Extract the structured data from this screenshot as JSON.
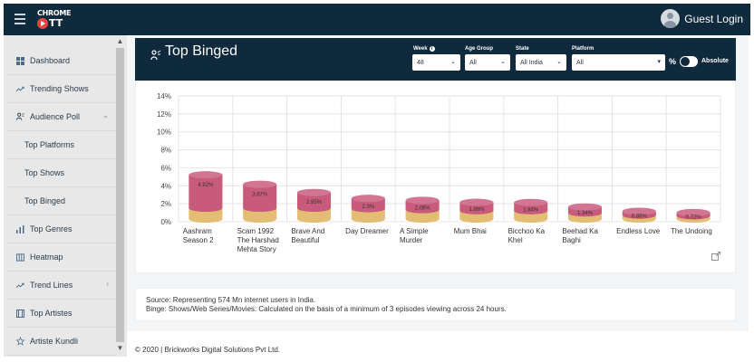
{
  "brand": {
    "logo_top": "CHROME",
    "logo_bottom": "TT"
  },
  "user": {
    "name": "Guest Login"
  },
  "sidebar": {
    "items": [
      {
        "label": "Dashboard",
        "icon": "grid-icon",
        "sub": false
      },
      {
        "label": "Trending Shows",
        "icon": "trend-icon",
        "sub": false
      },
      {
        "label": "Audience Poll",
        "icon": "audience-icon",
        "sub": false,
        "caret": "chevron-down"
      },
      {
        "label": "Top Platforms",
        "sub": true
      },
      {
        "label": "Top Shows",
        "sub": true
      },
      {
        "label": "Top Binged",
        "sub": true
      },
      {
        "label": "Top Genres",
        "icon": "bars-icon",
        "sub": false
      },
      {
        "label": "Heatmap",
        "icon": "heatmap-icon",
        "sub": false
      },
      {
        "label": "Trend Lines",
        "icon": "trend-icon",
        "sub": false,
        "caret": "chevron-left"
      },
      {
        "label": "Top Artistes",
        "icon": "film-icon",
        "sub": false
      },
      {
        "label": "Artiste Kundli",
        "icon": "star-icon",
        "sub": false
      }
    ]
  },
  "header": {
    "title": "Top Binged",
    "filters": {
      "week": {
        "label": "Week",
        "value": "48"
      },
      "age_group": {
        "label": "Age Group",
        "value": "All"
      },
      "state": {
        "label": "State",
        "value": "All India"
      },
      "platform": {
        "label": "Platform",
        "value": "All"
      }
    },
    "percent_label": "%",
    "absolute_label": "Absolute"
  },
  "chart_data": {
    "type": "bar",
    "categories": [
      [
        "Aashram",
        "Season 2"
      ],
      [
        "Scam 1992",
        "The Harshad",
        "Mehta Story"
      ],
      [
        "Brave And",
        "Beautiful"
      ],
      [
        "Day Dreamer"
      ],
      [
        "A Simple",
        "Murder"
      ],
      [
        "Mum Bhai"
      ],
      [
        "Bicchoo Ka",
        "Khel"
      ],
      [
        "Beehad Ka",
        "Baghi"
      ],
      [
        "Endless Love"
      ],
      [
        "The Undoing"
      ]
    ],
    "values": [
      4.92,
      3.87,
      2.95,
      2.3,
      2.08,
      1.86,
      1.84,
      1.34,
      0.86,
      0.72
    ],
    "data_labels": [
      "4.92%",
      "3.87%",
      "2.95%",
      "2.3%",
      "2.08%",
      "1.86%",
      "1.84%",
      "1.34%",
      "0.86%",
      "0.72%"
    ],
    "y_ticks": [
      "0%",
      "2%",
      "4%",
      "6%",
      "8%",
      "10%",
      "12%",
      "14%"
    ],
    "ylim": [
      0,
      14
    ],
    "colors": {
      "top": "#c85a7c",
      "base": "#e3bd73"
    }
  },
  "source": {
    "line1": "Source: Representing 574 Mn internet users in India.",
    "line2": "Binge: Shows/Web Series/Movies: Calculated on the basis of a minimum of 3 episodes viewing across 24 hours."
  },
  "footer": {
    "text": "© 2020 | Brickworks Digital Solutions Pvt Ltd."
  }
}
